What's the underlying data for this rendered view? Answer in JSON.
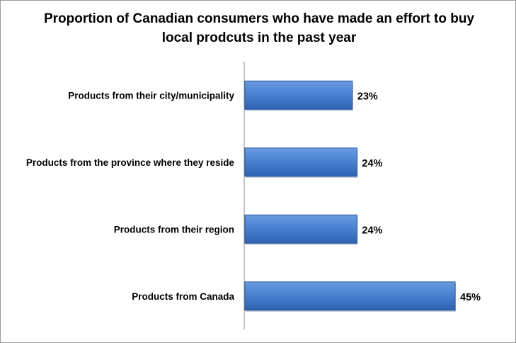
{
  "chart_data": {
    "type": "bar",
    "orientation": "horizontal",
    "title": "Proportion of Canadian consumers who have made an effort to buy local prodcuts in the past year",
    "categories": [
      "Products from their city/municipality",
      "Products from the province where they reside",
      "Products from their region",
      "Products from Canada"
    ],
    "values": [
      23,
      24,
      24,
      45
    ],
    "value_labels": [
      "23%",
      "24%",
      "24%",
      "45%"
    ],
    "unit": "%",
    "xlim": [
      0,
      50
    ],
    "grid": false,
    "legend": "none",
    "bar_color": "#3f78c7",
    "bar_edge_color": "#2a5a9e"
  }
}
